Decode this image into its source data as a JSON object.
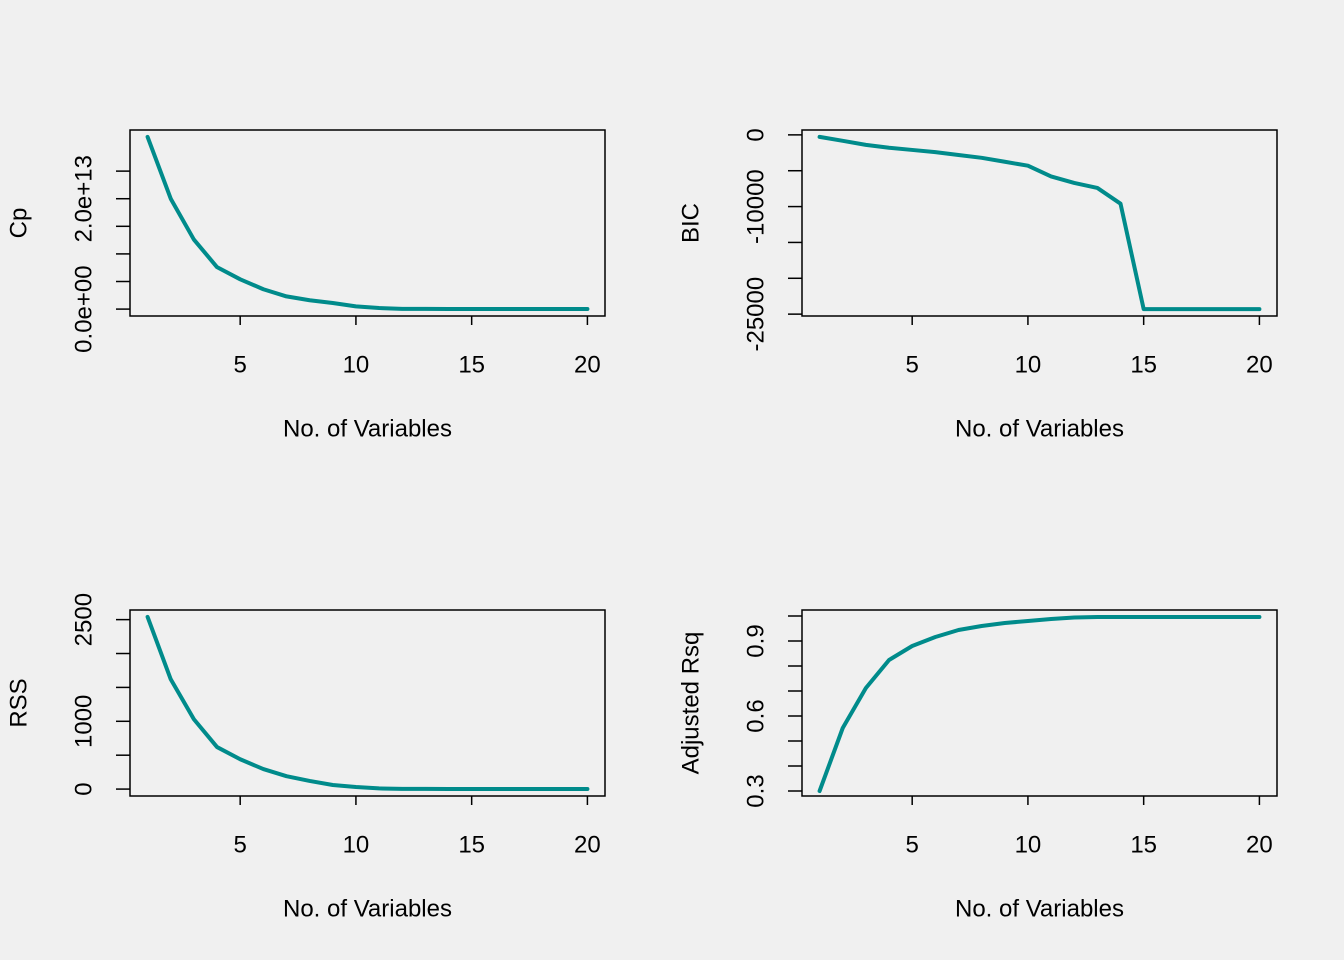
{
  "chart_data": [
    {
      "type": "line",
      "xlabel": "No. of Variables",
      "ylabel": "Cp",
      "color": "#008b8b",
      "x": [
        1,
        2,
        3,
        4,
        5,
        6,
        7,
        8,
        9,
        10,
        11,
        12,
        13,
        14,
        15,
        16,
        17,
        18,
        19,
        20
      ],
      "values": [
        31200000000000,
        20000000000000,
        12600000000000,
        7600000000000,
        5400000000000,
        3600000000000,
        2300000000000,
        1600000000000,
        1100000000000,
        500000000000,
        200000000000,
        50000000000,
        30000000000,
        20000000000,
        10000000000,
        10000000000,
        10000000000,
        10000000000,
        10000000000,
        10000000000
      ],
      "xlim": [
        0.24,
        20.76
      ],
      "ylim": [
        -1250000000000,
        32450000000000
      ],
      "xticks": [
        5,
        10,
        15,
        20
      ],
      "yticks": [
        {
          "value": 0,
          "label": "0.0e+00"
        },
        {
          "value": 20000000000000,
          "label": "2.0e+13"
        }
      ],
      "yminor_ticks": [
        5000000000000,
        10000000000000,
        15000000000000,
        25000000000000
      ]
    },
    {
      "type": "line",
      "xlabel": "No. of Variables",
      "ylabel": "BIC",
      "color": "#008b8b",
      "x": [
        1,
        2,
        3,
        4,
        5,
        6,
        7,
        8,
        9,
        10,
        11,
        12,
        13,
        14,
        15,
        16,
        17,
        18,
        19,
        20
      ],
      "values": [
        -280,
        -830,
        -1390,
        -1800,
        -2100,
        -2400,
        -2800,
        -3200,
        -3750,
        -4300,
        -5800,
        -6700,
        -7400,
        -9600,
        -24300,
        -24300,
        -24300,
        -24300,
        -24300,
        -24300
      ],
      "xlim": [
        0.24,
        20.76
      ],
      "ylim": [
        -25260,
        680
      ],
      "xticks": [
        5,
        10,
        15,
        20
      ],
      "yticks": [
        0,
        -10000,
        -25000
      ],
      "yminor_ticks": [
        -5000,
        -15000,
        -20000
      ]
    },
    {
      "type": "line",
      "xlabel": "No. of Variables",
      "ylabel": "RSS",
      "color": "#008b8b",
      "x": [
        1,
        2,
        3,
        4,
        5,
        6,
        7,
        8,
        9,
        10,
        11,
        12,
        13,
        14,
        15,
        16,
        17,
        18,
        19,
        20
      ],
      "values": [
        2540,
        1620,
        1030,
        620,
        440,
        295,
        190,
        120,
        60,
        30,
        10,
        4,
        3,
        2,
        1,
        1,
        1,
        1,
        1,
        1
      ],
      "xlim": [
        0.24,
        20.76
      ],
      "ylim": [
        -102,
        2642
      ],
      "xticks": [
        5,
        10,
        15,
        20
      ],
      "yticks": [
        0,
        1000,
        2500
      ],
      "yminor_ticks": [
        500,
        1500,
        2000
      ]
    },
    {
      "type": "line",
      "xlabel": "No. of Variables",
      "ylabel": "Adjusted Rsq",
      "color": "#008b8b",
      "x": [
        1,
        2,
        3,
        4,
        5,
        6,
        7,
        8,
        9,
        10,
        11,
        12,
        13,
        14,
        15,
        16,
        17,
        18,
        19,
        20
      ],
      "values": [
        0.3,
        0.552,
        0.712,
        0.824,
        0.88,
        0.916,
        0.944,
        0.96,
        0.972,
        0.98,
        0.988,
        0.994,
        0.996,
        0.996,
        0.996,
        0.996,
        0.996,
        0.996,
        0.996,
        0.996
      ],
      "xlim": [
        0.24,
        20.76
      ],
      "ylim": [
        0.28,
        1.024
      ],
      "xticks": [
        5,
        10,
        15,
        20
      ],
      "yticks": [
        0.3,
        0.6,
        0.9
      ],
      "yminor_ticks": [
        0.4,
        0.5,
        0.7,
        0.8,
        1.0
      ]
    }
  ]
}
